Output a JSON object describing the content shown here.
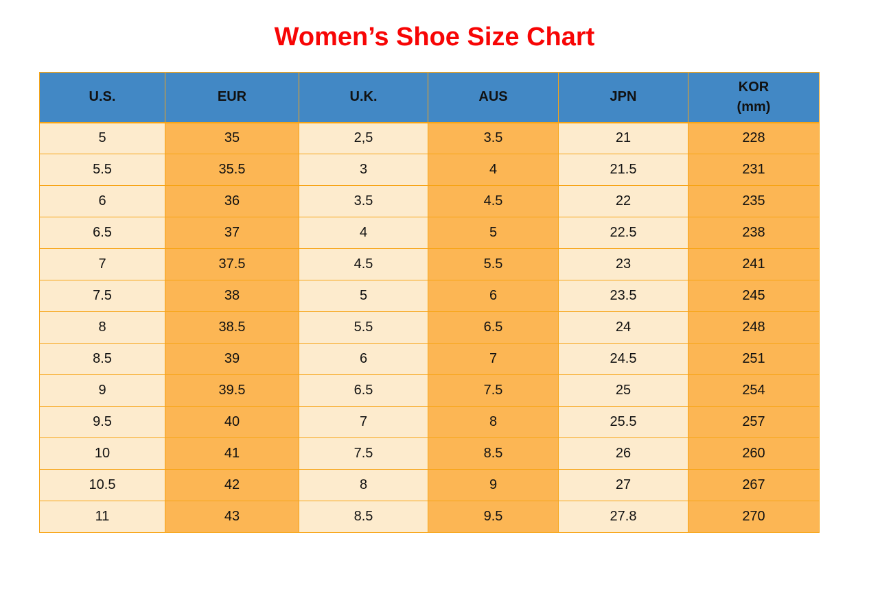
{
  "title": "Women’s Shoe Size Chart",
  "colors": {
    "title_red": "#f70505",
    "header_blue": "#4288c5",
    "cell_cream": "#fdebcd",
    "cell_orange": "#fcb654",
    "border_orange": "#f7a415",
    "text_dark": "#111111"
  },
  "table": {
    "headers": [
      "U.S.",
      "EUR",
      "U.K.",
      "AUS",
      "JPN",
      "KOR\n(mm)"
    ],
    "rows": [
      [
        "5",
        "35",
        "2,5",
        "3.5",
        "21",
        "228"
      ],
      [
        "5.5",
        "35.5",
        "3",
        "4",
        "21.5",
        "231"
      ],
      [
        "6",
        "36",
        "3.5",
        "4.5",
        "22",
        "235"
      ],
      [
        "6.5",
        "37",
        "4",
        "5",
        "22.5",
        "238"
      ],
      [
        "7",
        "37.5",
        "4.5",
        "5.5",
        "23",
        "241"
      ],
      [
        "7.5",
        "38",
        "5",
        "6",
        "23.5",
        "245"
      ],
      [
        "8",
        "38.5",
        "5.5",
        "6.5",
        "24",
        "248"
      ],
      [
        "8.5",
        "39",
        "6",
        "7",
        "24.5",
        "251"
      ],
      [
        "9",
        "39.5",
        "6.5",
        "7.5",
        "25",
        "254"
      ],
      [
        "9.5",
        "40",
        "7",
        "8",
        "25.5",
        "257"
      ],
      [
        "10",
        "41",
        "7.5",
        "8.5",
        "26",
        "260"
      ],
      [
        "10.5",
        "42",
        "8",
        "9",
        "27",
        "267"
      ],
      [
        "11",
        "43",
        "8.5",
        "9.5",
        "27.8",
        "270"
      ]
    ]
  },
  "chart_data": {
    "type": "table",
    "title": "Women’s Shoe Size Chart",
    "columns": [
      "U.S.",
      "EUR",
      "U.K.",
      "AUS",
      "JPN",
      "KOR (mm)"
    ],
    "rows": [
      [
        "5",
        "35",
        "2,5",
        "3.5",
        "21",
        "228"
      ],
      [
        "5.5",
        "35.5",
        "3",
        "4",
        "21.5",
        "231"
      ],
      [
        "6",
        "36",
        "3.5",
        "4.5",
        "22",
        "235"
      ],
      [
        "6.5",
        "37",
        "4",
        "5",
        "22.5",
        "238"
      ],
      [
        "7",
        "37.5",
        "4.5",
        "5.5",
        "23",
        "241"
      ],
      [
        "7.5",
        "38",
        "5",
        "6",
        "23.5",
        "245"
      ],
      [
        "8",
        "38.5",
        "5.5",
        "6.5",
        "24",
        "248"
      ],
      [
        "8.5",
        "39",
        "6",
        "7",
        "24.5",
        "251"
      ],
      [
        "9",
        "39.5",
        "6.5",
        "7.5",
        "25",
        "254"
      ],
      [
        "9.5",
        "40",
        "7",
        "8",
        "25.5",
        "257"
      ],
      [
        "10",
        "41",
        "7.5",
        "8.5",
        "26",
        "260"
      ],
      [
        "10.5",
        "42",
        "8",
        "9",
        "27",
        "267"
      ],
      [
        "11",
        "43",
        "8.5",
        "9.5",
        "27.8",
        "270"
      ]
    ],
    "layout_hints": {
      "header_fill": "blue",
      "column_fill_pattern": [
        "cream",
        "orange",
        "cream",
        "orange",
        "cream",
        "orange"
      ],
      "grid": "orange borders"
    }
  }
}
